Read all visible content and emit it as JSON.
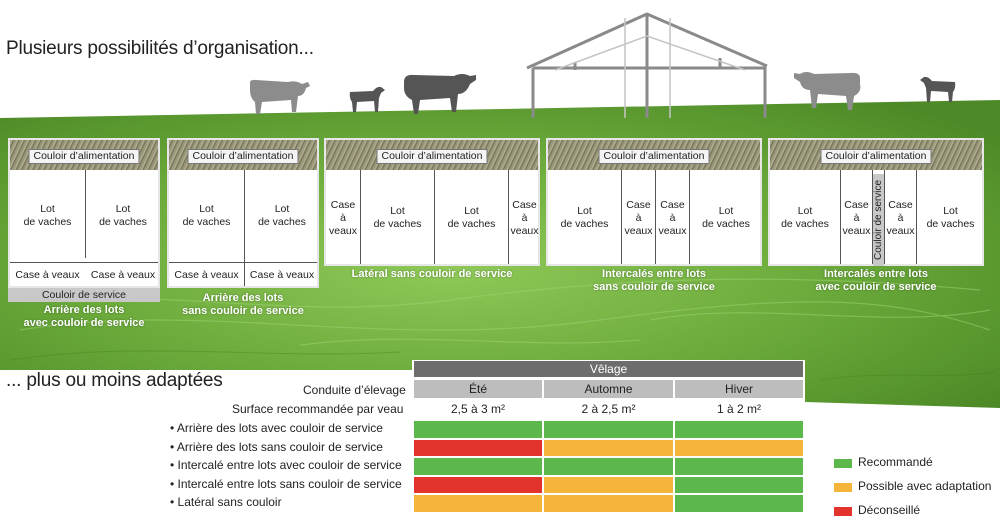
{
  "title1": "Plusieurs possibilités d’organisation...",
  "title2": "... plus ou moins adaptées",
  "plans": [
    {
      "feed": "Couloir d’alimentation",
      "lot1": "Lot\nde vaches",
      "lot2": "Lot\nde vaches",
      "case1": "Case à veaux",
      "case2": "Case à veaux",
      "service": "Couloir de service",
      "caption": "Arrière des lots\navec couloir de service"
    },
    {
      "feed": "Couloir d’alimentation",
      "lot1": "Lot\nde vaches",
      "lot2": "Lot\nde vaches",
      "case1": "Case à veaux",
      "case2": "Case à veaux",
      "caption": "Arrière des lots\nsans couloir de service"
    },
    {
      "feed": "Couloir d’alimentation",
      "case1": "Case\nà\nveaux",
      "lot1": "Lot\nde vaches",
      "lot2": "Lot\nde vaches",
      "case2": "Case\nà\nveaux",
      "caption": "Latéral sans couloir de service"
    },
    {
      "feed": "Couloir d’alimentation",
      "lot1": "Lot\nde vaches",
      "case1": "Case\nà\nveaux",
      "case2": "Case\nà\nveaux",
      "lot2": "Lot\nde vaches",
      "caption": "Intercalés entre lots\nsans couloir de service"
    },
    {
      "feed": "Couloir d’alimentation",
      "lot1": "Lot\nde vaches",
      "case1": "Case\nà\nveaux",
      "service": "Couloir de service",
      "case2": "Case\nà\nveaux",
      "lot2": "Lot\nde vaches",
      "caption": "Intercalés entre lots\navec couloir de service"
    }
  ],
  "table": {
    "group_header": "Vêlage",
    "conduite_label": "Conduite d’élevage",
    "surface_label": "Surface recommandée par veau",
    "seasons": [
      "Été",
      "Automne",
      "Hiver"
    ],
    "surfaces": [
      "2,5 à 3 m²",
      "2 à 2,5 m²",
      "1 à 2 m²"
    ],
    "rows": [
      {
        "label": "• Arrière des lots avec couloir de service",
        "ratings": [
          "recommande",
          "recommande",
          "recommande"
        ]
      },
      {
        "label": "• Arrière des lots sans couloir de service",
        "ratings": [
          "deconseille",
          "possible",
          "possible"
        ]
      },
      {
        "label": "• Intercalé entre lots avec couloir de service",
        "ratings": [
          "recommande",
          "recommande",
          "recommande"
        ]
      },
      {
        "label": "• Intercalé entre lots sans couloir de service",
        "ratings": [
          "deconseille",
          "possible",
          "recommande"
        ]
      },
      {
        "label": "• Latéral sans couloir",
        "ratings": [
          "possible",
          "possible",
          "recommande"
        ]
      }
    ]
  },
  "legend": [
    {
      "key": "recommande",
      "label": "Recommandé",
      "color": "#5cb84a"
    },
    {
      "key": "possible",
      "label": "Possible avec adaptation",
      "color": "#f5b53a"
    },
    {
      "key": "deconseille",
      "label": "Déconseillé",
      "color": "#e2342c"
    }
  ],
  "colors": {
    "grass": "#5e9a2e",
    "grass_light": "#8cc653",
    "header_dark": "#6d6d6d",
    "header_light": "#bdbdbd"
  }
}
